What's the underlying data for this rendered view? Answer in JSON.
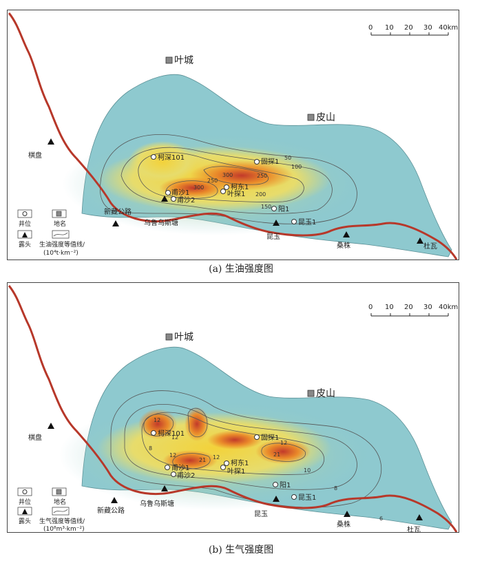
{
  "panels": [
    {
      "id": "a",
      "caption": "(a)  生油强度图",
      "legend": {
        "well": "井位",
        "place": "地名",
        "outcrop": "露头",
        "contour_line1": "生油强度等值线/",
        "contour_line2": "(10⁴t·km⁻²)"
      },
      "contour_labels": [
        "50",
        "100",
        "250",
        "300",
        "250",
        "200",
        "150",
        "300"
      ]
    },
    {
      "id": "b",
      "caption": "(b)  生气强度图",
      "legend": {
        "well": "井位",
        "place": "地名",
        "outcrop": "露头",
        "contour_line1": "生气强度等值线/",
        "contour_line2": "(10⁸m³·km⁻²)"
      },
      "contour_labels": [
        "12",
        "8",
        "12",
        "12",
        "21",
        "12",
        "12",
        "21",
        "10",
        "8",
        "6"
      ]
    }
  ],
  "places": {
    "yecheng": "叶城",
    "pishan": "皮山"
  },
  "outcrops": [
    "棋盘",
    "新藏公路",
    "乌鲁乌斯塘",
    "昆玉",
    "桑株",
    "杜瓦"
  ],
  "wells": [
    "柯深101",
    "固探1",
    "柯东1",
    "叶探1",
    "甫沙1",
    "甫沙2",
    "阳1",
    "昆玉1"
  ],
  "scale": {
    "ticks": [
      "0",
      "10",
      "20",
      "30",
      "40km"
    ]
  },
  "colors": {
    "basin_outer": "#8ec9cf",
    "basin_mid": "#cfe27f",
    "hot_yellow": "#f3d23a",
    "hot_orange": "#ea8a2a",
    "hot_red": "#c23a2a",
    "road": "#b7382a"
  }
}
